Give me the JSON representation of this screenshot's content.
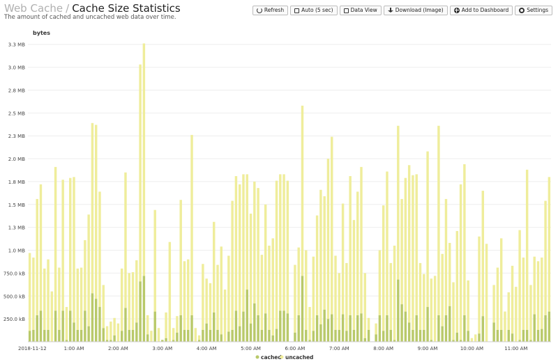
{
  "header": {
    "breadcrumb_parent": "Web Cache",
    "breadcrumb_separator": "/",
    "title": "Cache Size Statistics",
    "subtitle": "The amount of cached and uncached web data over time."
  },
  "toolbar": {
    "refresh": "Refresh",
    "auto": "Auto (5 sec)",
    "data_view": "Data View",
    "download": "Download (Image)",
    "add_dashboard": "Add to Dashboard",
    "settings": "Settings"
  },
  "colors": {
    "cached": "#b9c96a",
    "uncached": "#efed9b",
    "grid": "#eeeeee"
  },
  "chart_data": {
    "type": "bar",
    "stacked": true,
    "ylabel": "bytes",
    "ylim": [
      0,
      3.4
    ],
    "y_unit": "MB",
    "y_ticks": [
      {
        "v": 0.25,
        "label": "250.0 kB"
      },
      {
        "v": 0.5,
        "label": "500.0 kB"
      },
      {
        "v": 0.75,
        "label": "750.0 kB"
      },
      {
        "v": 1.0,
        "label": "1.0 MB"
      },
      {
        "v": 1.25,
        "label": "1.3 MB"
      },
      {
        "v": 1.5,
        "label": "1.5 MB"
      },
      {
        "v": 1.75,
        "label": "1.8 MB"
      },
      {
        "v": 2.0,
        "label": "2.0 MB"
      },
      {
        "v": 2.25,
        "label": "2.3 MB"
      },
      {
        "v": 2.5,
        "label": "2.5 MB"
      },
      {
        "v": 2.75,
        "label": "2.8 MB"
      },
      {
        "v": 3.0,
        "label": "3.0 MB"
      },
      {
        "v": 3.25,
        "label": "3.3 MB"
      }
    ],
    "x_ticks": [
      {
        "i": 0,
        "label": "2018-11-12"
      },
      {
        "i": 12,
        "label": "1:00 AM"
      },
      {
        "i": 24,
        "label": "2:00 AM"
      },
      {
        "i": 36,
        "label": "3:00 AM"
      },
      {
        "i": 48,
        "label": "4:00 AM"
      },
      {
        "i": 60,
        "label": "5:00 AM"
      },
      {
        "i": 72,
        "label": "6:00 AM"
      },
      {
        "i": 84,
        "label": "7:00 AM"
      },
      {
        "i": 96,
        "label": "8:00 AM"
      },
      {
        "i": 108,
        "label": "9:00 AM"
      },
      {
        "i": 120,
        "label": "10:00 AM"
      },
      {
        "i": 132,
        "label": "11:00 AM"
      }
    ],
    "legend_position": "bottom-center",
    "series": [
      {
        "name": "cached",
        "values": [
          0.12,
          0.13,
          0.29,
          0.34,
          0.13,
          0.13,
          0.0,
          0.34,
          0.13,
          0.34,
          0.02,
          0.34,
          0.21,
          0.13,
          0.13,
          0.34,
          0.17,
          0.53,
          0.47,
          0.38,
          0.15,
          0.02,
          0.02,
          0.07,
          0.0,
          0.12,
          0.37,
          0.13,
          0.13,
          0.21,
          0.66,
          0.72,
          0.08,
          0.0,
          0.33,
          0.0,
          0.02,
          0.04,
          0.0,
          0.02,
          0.1,
          0.29,
          0.13,
          0.13,
          0.29,
          0.0,
          0.02,
          0.13,
          0.2,
          0.13,
          0.32,
          0.13,
          0.08,
          0.0,
          0.11,
          0.13,
          0.34,
          0.17,
          0.33,
          0.57,
          0.2,
          0.42,
          0.29,
          0.13,
          0.31,
          0.13,
          0.07,
          0.14,
          0.34,
          0.34,
          0.31,
          0.0,
          0.1,
          0.29,
          0.72,
          0.13,
          0.02,
          0.12,
          0.29,
          0.19,
          0.35,
          0.25,
          0.3,
          0.13,
          0.13,
          0.3,
          0.12,
          0.29,
          0.13,
          0.29,
          0.31,
          0.04,
          0.13,
          0.0,
          0.08,
          0.29,
          0.12,
          0.29,
          0.13,
          0.02,
          0.68,
          0.41,
          0.33,
          0.21,
          0.13,
          0.29,
          0.13,
          0.13,
          0.38,
          0.02,
          0.0,
          0.29,
          0.17,
          0.29,
          0.39,
          0.02,
          0.1,
          0.02,
          0.29,
          0.12,
          0.0,
          0.0,
          0.09,
          0.28,
          0.0,
          0.0,
          0.21,
          0.13,
          0.13,
          0.0,
          0.13,
          0.09,
          0.0,
          0.02,
          0.13,
          0.13,
          0.02,
          0.3,
          0.13,
          0.14,
          0.29,
          0.33
        ]
      },
      {
        "name": "uncached",
        "values": [
          0.85,
          0.79,
          1.27,
          1.38,
          0.67,
          0.77,
          0.55,
          1.57,
          0.68,
          1.43,
          0.36,
          1.45,
          1.59,
          0.67,
          0.68,
          0.77,
          1.22,
          1.86,
          1.9,
          1.26,
          0.47,
          0.15,
          0.2,
          0.19,
          0.2,
          0.68,
          1.48,
          0.62,
          0.63,
          0.68,
          2.37,
          2.54,
          0.21,
          0.12,
          1.11,
          0.15,
          0.0,
          0.28,
          1.09,
          0.13,
          0.18,
          1.26,
          0.75,
          0.77,
          1.97,
          0.15,
          0.05,
          0.72,
          0.49,
          0.51,
          0.99,
          0.71,
          0.96,
          0.57,
          0.83,
          1.41,
          1.47,
          1.55,
          1.5,
          1.26,
          1.2,
          1.33,
          1.39,
          0.82,
          1.19,
          0.92,
          1.06,
          1.62,
          1.49,
          1.49,
          1.45,
          0.0,
          0.74,
          0.74,
          1.86,
          0.87,
          0.36,
          0.81,
          1.09,
          1.47,
          1.24,
          1.75,
          1.94,
          0.81,
          0.62,
          1.21,
          0.74,
          1.52,
          1.2,
          1.35,
          1.6,
          0.71,
          0.13,
          0.0,
          0.12,
          0.71,
          1.37,
          1.57,
          0.73,
          1.03,
          1.68,
          1.15,
          1.46,
          1.72,
          1.69,
          1.54,
          0.73,
          0.61,
          1.7,
          0.67,
          0.72,
          2.07,
          0.79,
          1.27,
          0.69,
          0.63,
          1.11,
          1.7,
          1.65,
          0.55,
          0.04,
          0.08,
          1.06,
          1.37,
          1.07,
          0.0,
          0.41,
          0.68,
          1.0,
          0.33,
          0.41,
          0.74,
          0.6,
          1.2,
          0.79,
          1.75,
          0.6,
          0.63,
          0.75,
          0.78,
          1.25,
          1.47
        ]
      }
    ]
  }
}
